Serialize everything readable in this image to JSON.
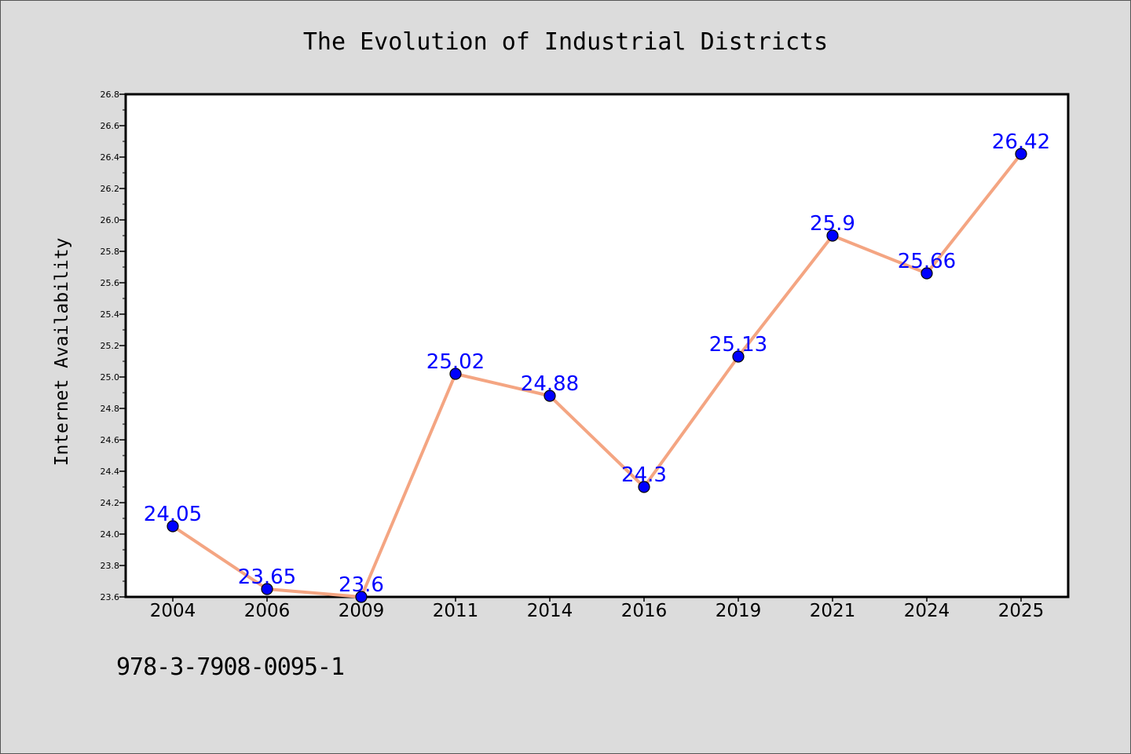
{
  "chart_data": {
    "type": "line",
    "title": "The Evolution of Industrial Districts",
    "xlabel": "",
    "ylabel": "Internet Availability",
    "categories": [
      "2004",
      "2006",
      "2009",
      "2011",
      "2014",
      "2016",
      "2019",
      "2021",
      "2024",
      "2025"
    ],
    "values": [
      24.05,
      23.65,
      23.6,
      25.02,
      24.88,
      24.3,
      25.13,
      25.9,
      25.66,
      26.42
    ],
    "value_labels": [
      "24.05",
      "23.65",
      "23.6",
      "25.02",
      "24.88",
      "24.3",
      "25.13",
      "25.9",
      "25.66",
      "26.42"
    ],
    "ylim": [
      23.6,
      26.8
    ],
    "yticks": [
      "23.6",
      "23.8",
      "24.0",
      "24.2",
      "24.4",
      "24.6",
      "24.8",
      "25.0",
      "25.2",
      "25.4",
      "25.6",
      "25.8",
      "26.0",
      "26.2",
      "26.4",
      "26.6",
      "26.8"
    ],
    "grid": false,
    "line_color": "#f4a582",
    "marker_color": "#0000ff",
    "label_color": "#0000ff"
  },
  "footer": {
    "isbn": "978-3-7908-0095-1"
  }
}
